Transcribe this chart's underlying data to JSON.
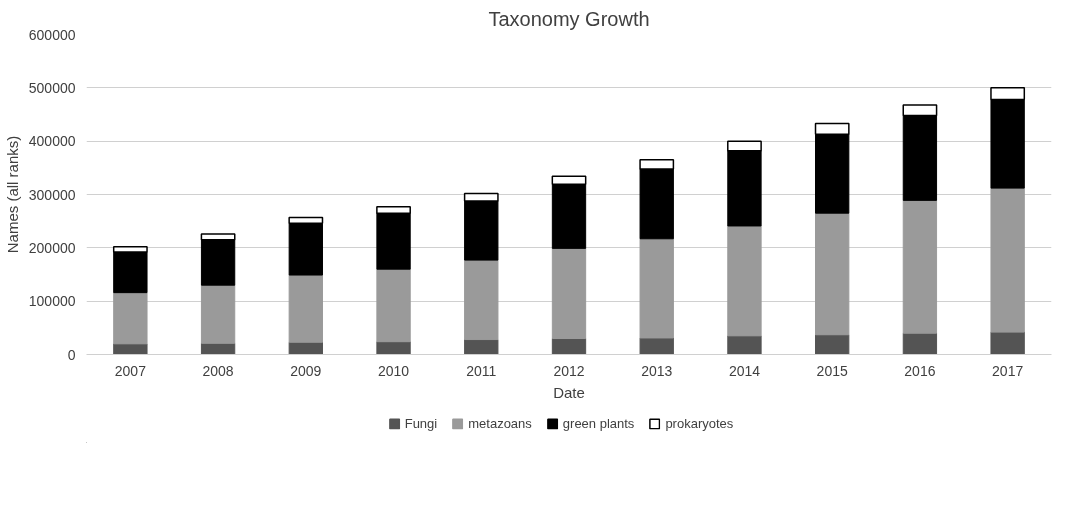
{
  "chart_data": {
    "type": "bar",
    "title": "Taxonomy Growth",
    "xlabel": "Date",
    "ylabel": "Names (all ranks)",
    "categories": [
      "2007",
      "2008",
      "2009",
      "2010",
      "2011",
      "2012",
      "2013",
      "2014",
      "2015",
      "2016",
      "2017"
    ],
    "stacked": true,
    "series": [
      {
        "name": "Fungi",
        "color": "#545454",
        "values": [
          20000,
          21000,
          23000,
          24000,
          28000,
          30000,
          31000,
          35000,
          37000,
          40000,
          42000
        ]
      },
      {
        "name": "metazoans",
        "color": "#9a9a9a",
        "values": [
          96000,
          109000,
          126000,
          136000,
          149000,
          169000,
          186000,
          206000,
          228000,
          249000,
          270000
        ]
      },
      {
        "name": "green plants",
        "color": "#000000",
        "values": [
          76000,
          85000,
          97000,
          105000,
          111000,
          120000,
          131000,
          141000,
          148000,
          159000,
          166000
        ]
      },
      {
        "name": "prokaryotes",
        "color": "#ffffff",
        "values": [
          10000,
          11000,
          11000,
          12000,
          14000,
          15000,
          17000,
          18000,
          20000,
          20000,
          22000
        ]
      }
    ],
    "ylim": [
      0,
      600000
    ],
    "yticks": [
      0,
      100000,
      200000,
      300000,
      400000,
      500000,
      600000
    ],
    "grid": "y",
    "legend": "bottom"
  }
}
